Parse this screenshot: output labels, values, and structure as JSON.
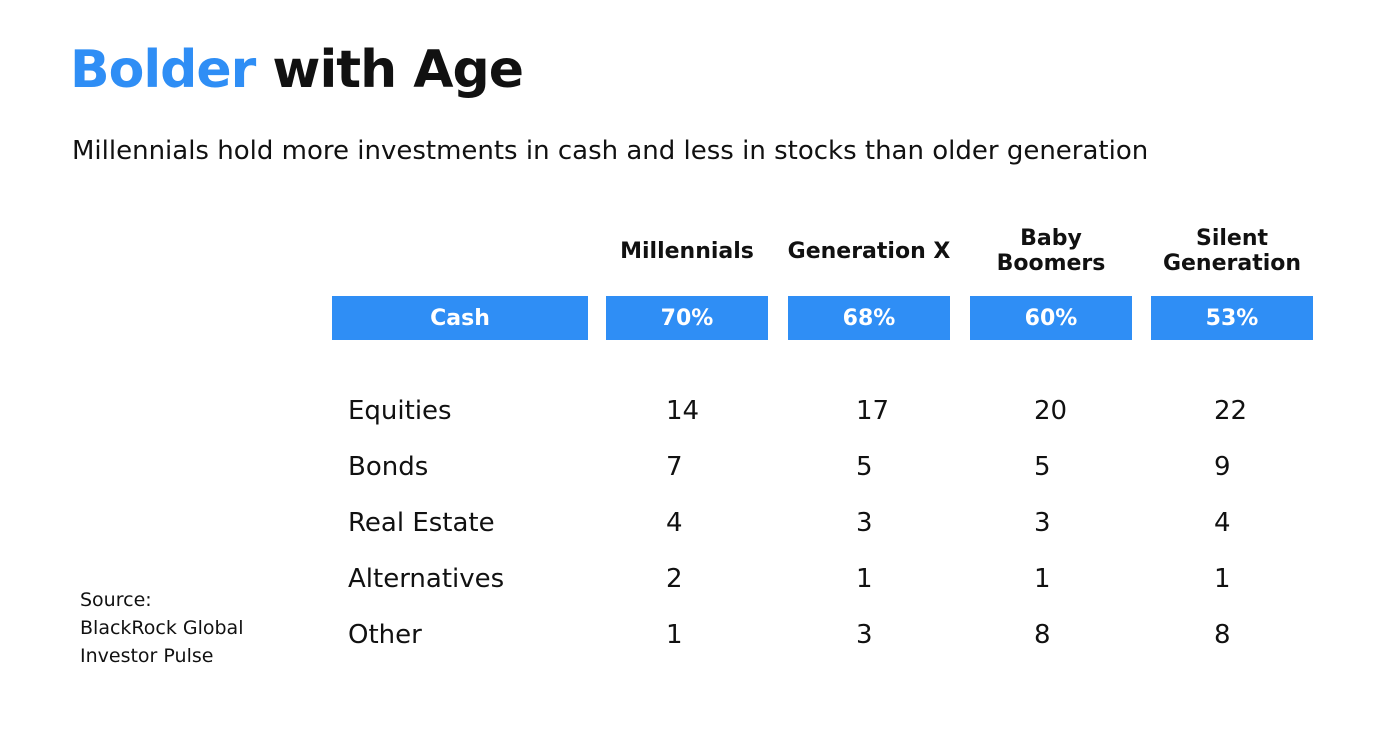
{
  "title": {
    "accent": "Bolder",
    "rest": " with Age"
  },
  "subtitle": "Millennials hold more investments in cash and less in stocks than older generation",
  "colors": {
    "accent": "#2f8ef5",
    "text": "#111111",
    "on_accent": "#ffffff"
  },
  "chart_data": {
    "type": "table",
    "title": "Bolder with Age",
    "subtitle": "Millennials hold more investments in cash and less in stocks than older generation",
    "columns": [
      {
        "line1": "Millennials",
        "line2": ""
      },
      {
        "line1": "Generation X",
        "line2": ""
      },
      {
        "line1": "Baby",
        "line2": "Boomers"
      },
      {
        "line1": "Silent",
        "line2": "Generation"
      }
    ],
    "highlight_row": {
      "label": "Cash",
      "values": [
        "70%",
        "68%",
        "60%",
        "53%"
      ]
    },
    "rows": [
      {
        "label": "Equities",
        "values": [
          "14",
          "17",
          "20",
          "22"
        ]
      },
      {
        "label": "Bonds",
        "values": [
          "7",
          "5",
          "5",
          "9"
        ]
      },
      {
        "label": "Real Estate",
        "values": [
          "4",
          "3",
          "3",
          "4"
        ]
      },
      {
        "label": "Alternatives",
        "values": [
          "2",
          "1",
          "1",
          "1"
        ]
      },
      {
        "label": "Other",
        "values": [
          "1",
          "3",
          "8",
          "8"
        ]
      }
    ]
  },
  "source": {
    "line1": "Source:",
    "line2": "BlackRock Global",
    "line3": "Investor Pulse"
  }
}
